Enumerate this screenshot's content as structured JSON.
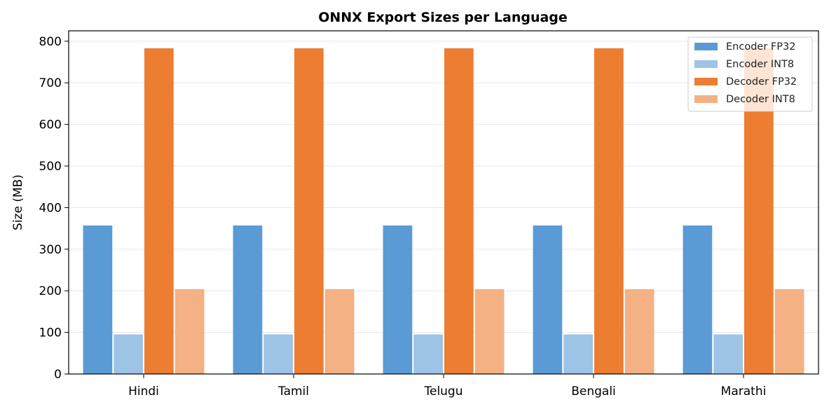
{
  "chart_data": {
    "type": "bar",
    "title": "ONNX Export Sizes per Language",
    "xlabel": "",
    "ylabel": "Size (MB)",
    "ylim": [
      0,
      825
    ],
    "yticks": [
      0,
      100,
      200,
      300,
      400,
      500,
      600,
      700,
      800
    ],
    "grid": "y",
    "legend_position": "top-right",
    "categories": [
      "Hindi",
      "Tamil",
      "Telugu",
      "Bengali",
      "Marathi"
    ],
    "series": [
      {
        "name": "Encoder FP32",
        "color": "#5b9bd5",
        "values": [
          357,
          357,
          357,
          357,
          357
        ]
      },
      {
        "name": "Encoder INT8",
        "color": "#9dc3e6",
        "values": [
          95,
          95,
          95,
          95,
          95
        ]
      },
      {
        "name": "Decoder FP32",
        "color": "#ed7d31",
        "values": [
          783,
          783,
          783,
          783,
          783
        ]
      },
      {
        "name": "Decoder INT8",
        "color": "#f4b183",
        "values": [
          204,
          204,
          204,
          204,
          204
        ]
      }
    ]
  }
}
